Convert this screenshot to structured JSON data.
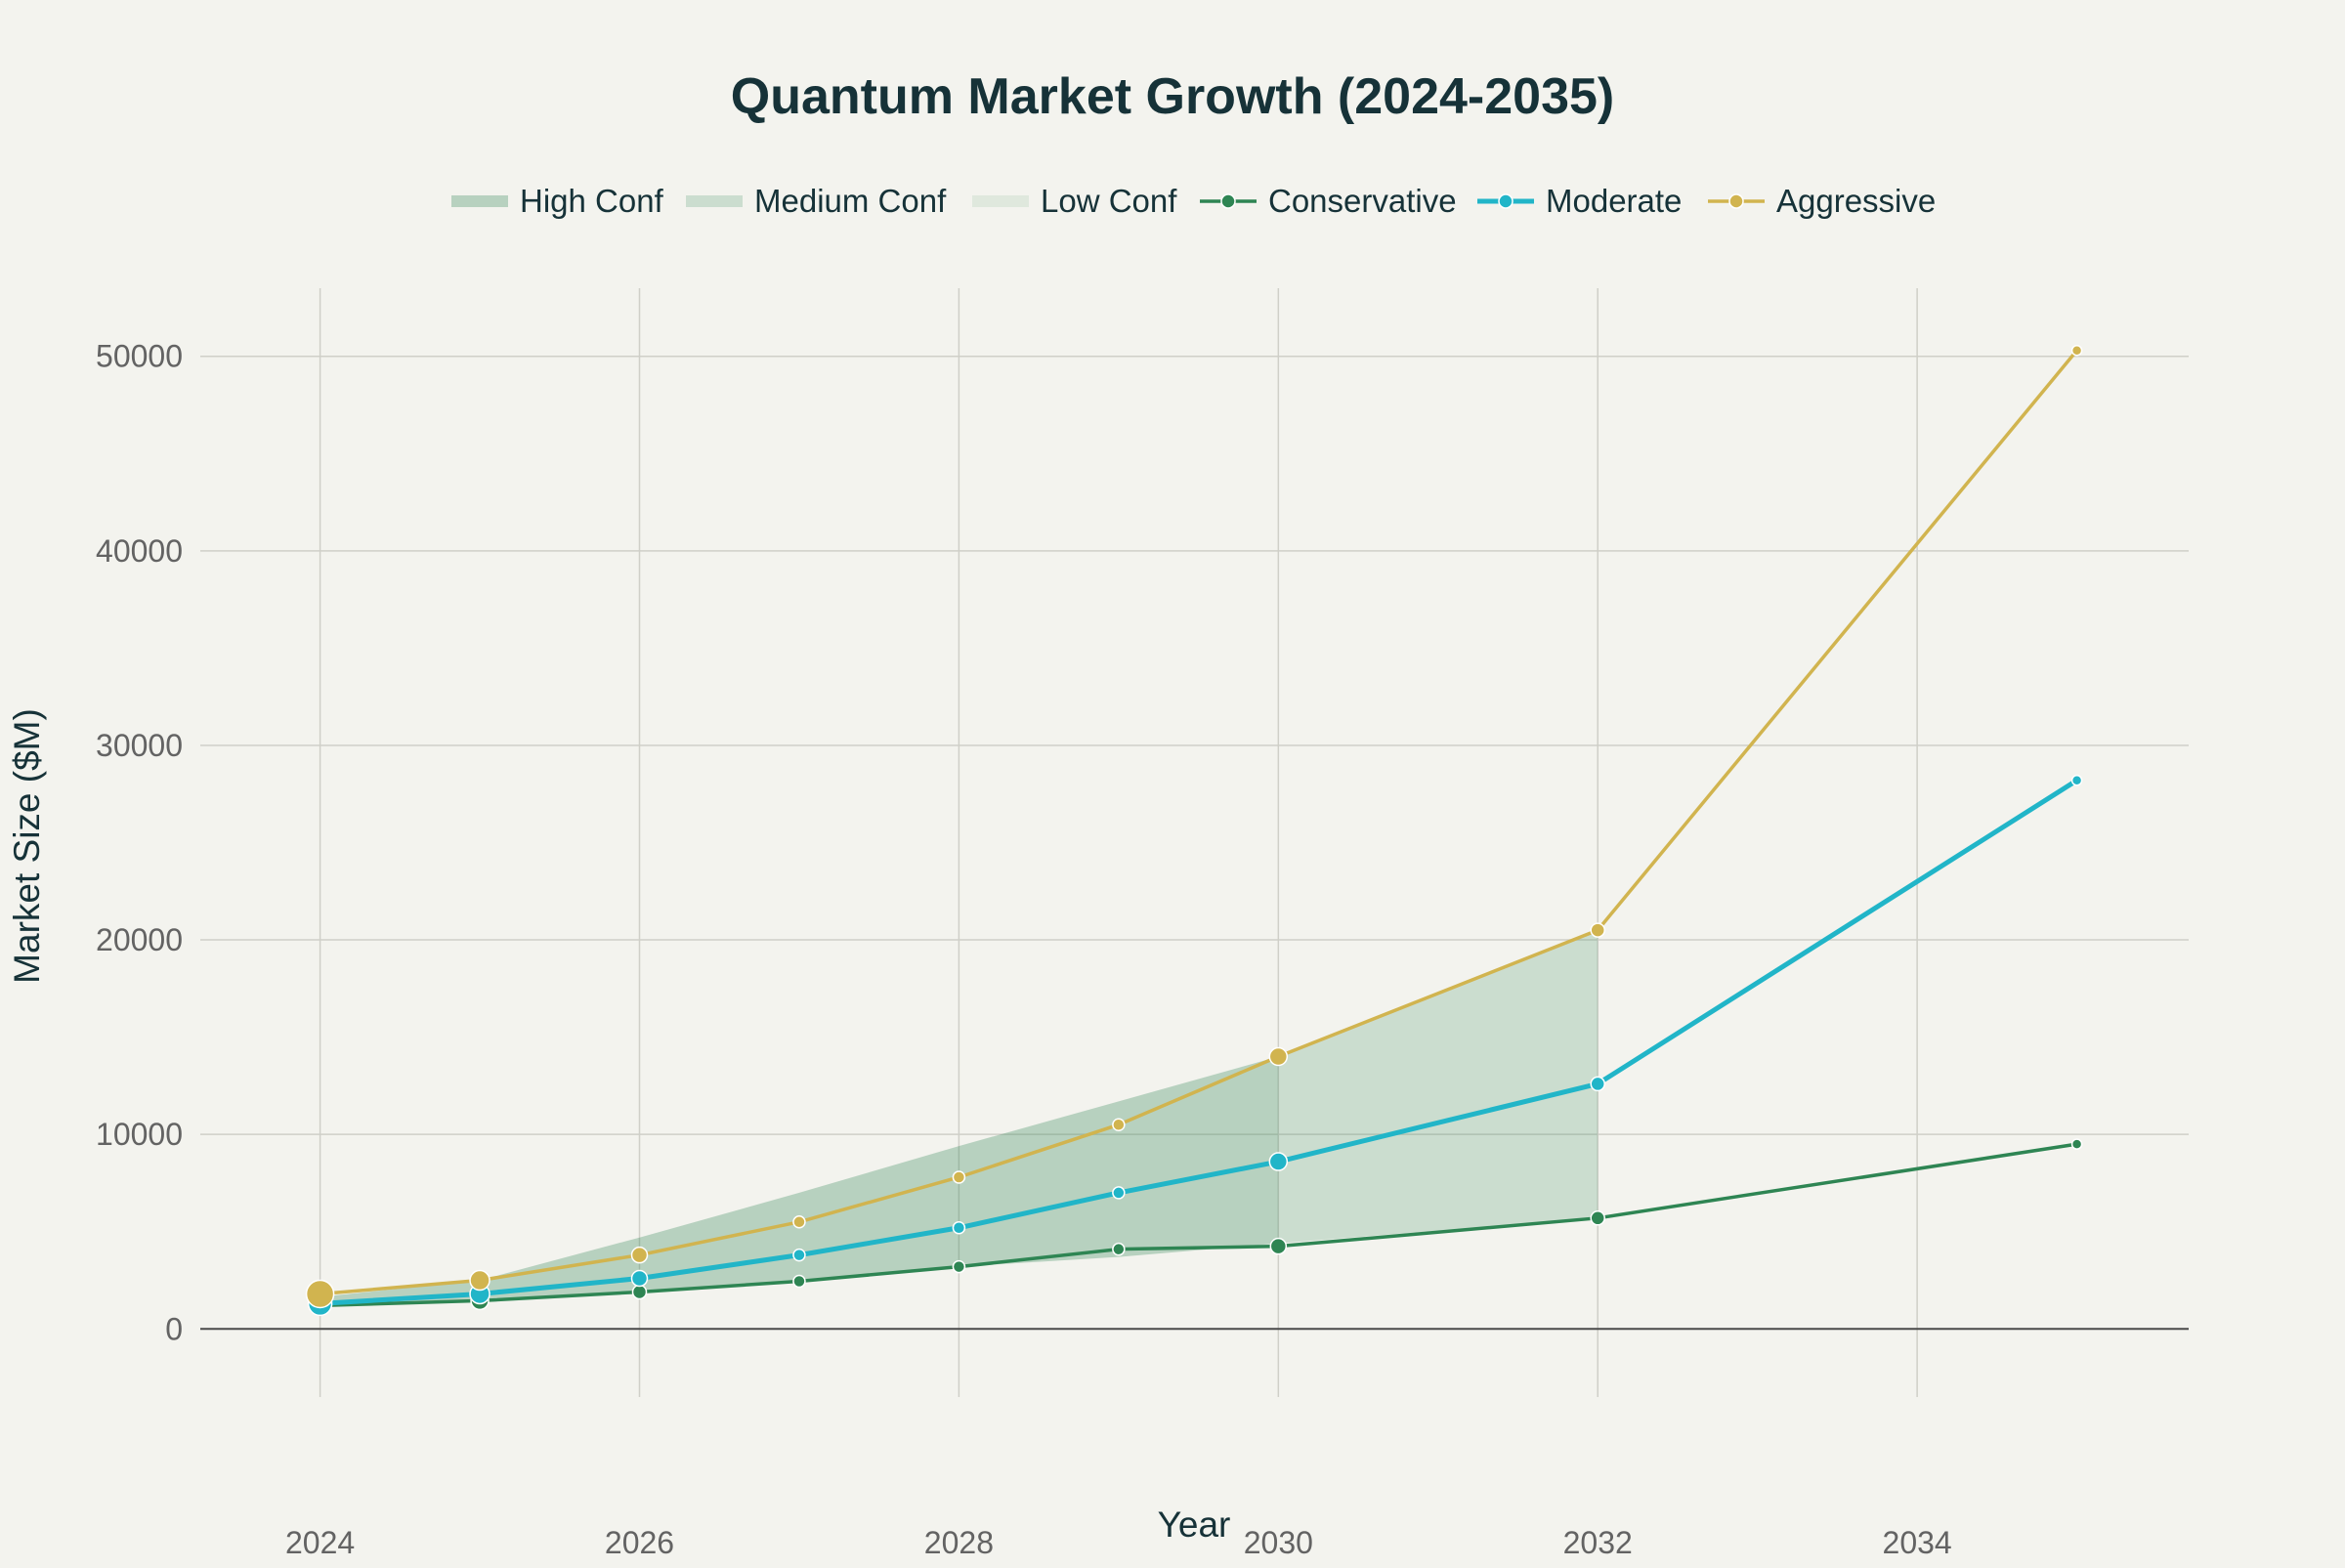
{
  "chart_data": {
    "type": "line",
    "title": "Quantum Market Growth (2024-2035)",
    "xlabel": "Year",
    "ylabel": "Market Size ($M)",
    "xlim": [
      2023.25,
      2035.7
    ],
    "ylim": [
      -3500,
      53500
    ],
    "x_ticks": [
      2024,
      2026,
      2028,
      2030,
      2032,
      2034
    ],
    "y_ticks": [
      0,
      10000,
      20000,
      30000,
      40000,
      50000
    ],
    "grid": true,
    "legend_position": "top-center",
    "series": [
      {
        "name": "Conservative",
        "color": "#2e8553",
        "x": [
          2024,
          2025,
          2026,
          2027,
          2028,
          2029,
          2030,
          2032,
          2035
        ],
        "values": [
          1200,
          1450,
          1900,
          2450,
          3200,
          4100,
          4250,
          5700,
          9500
        ]
      },
      {
        "name": "Moderate",
        "color": "#21b5c8",
        "x": [
          2024,
          2025,
          2026,
          2027,
          2028,
          2029,
          2030,
          2032,
          2035
        ],
        "values": [
          1300,
          1800,
          2600,
          3800,
          5200,
          7000,
          8600,
          12600,
          28200
        ]
      },
      {
        "name": "Aggressive",
        "color": "#d1b44f",
        "x": [
          2024,
          2025,
          2026,
          2027,
          2028,
          2029,
          2030,
          2032,
          2035
        ],
        "values": [
          1800,
          2500,
          3800,
          5500,
          7800,
          10500,
          14000,
          20500,
          50300
        ]
      }
    ],
    "bands": [
      {
        "name": "High Conf",
        "color": "#2e8553",
        "opacity": 0.3,
        "x": [
          2024,
          2025,
          2026,
          2027,
          2028,
          2029,
          2030
        ],
        "lower": [
          1200,
          1500,
          1950,
          2500,
          3200,
          3700,
          4400
        ],
        "upper": [
          1650,
          2500,
          4700,
          7000,
          9400,
          11700,
          14000
        ]
      },
      {
        "name": "Medium Conf",
        "color": "#2e8553",
        "opacity": 0.2,
        "x": [
          2030,
          2032
        ],
        "lower": [
          4400,
          5700
        ],
        "upper": [
          14000,
          20500
        ]
      },
      {
        "name": "Low Conf",
        "color": "#2e8553",
        "opacity": 0.1,
        "x": [],
        "lower": [],
        "upper": []
      }
    ],
    "marker_sizes": [
      {
        "series": "Conservative",
        "sizes": [
          9,
          9,
          7,
          6,
          6,
          6,
          8,
          7,
          5
        ]
      },
      {
        "series": "Moderate",
        "sizes": [
          12,
          10,
          8,
          6,
          6,
          6,
          9,
          7,
          5
        ]
      },
      {
        "series": "Aggressive",
        "sizes": [
          14,
          10,
          8,
          6,
          6,
          6,
          9,
          7,
          5
        ]
      }
    ],
    "legend": [
      {
        "label": "High Conf",
        "kind": "band",
        "color": "#2e8553",
        "opacity": 0.3
      },
      {
        "label": "Medium Conf",
        "kind": "band",
        "color": "#2e8553",
        "opacity": 0.2
      },
      {
        "label": "Low Conf",
        "kind": "band",
        "color": "#2e8553",
        "opacity": 0.1
      },
      {
        "label": "Conservative",
        "kind": "line",
        "color": "#2e8553"
      },
      {
        "label": "Moderate",
        "kind": "line",
        "color": "#21b5c8"
      },
      {
        "label": "Aggressive",
        "kind": "line",
        "color": "#d1b44f"
      }
    ]
  }
}
